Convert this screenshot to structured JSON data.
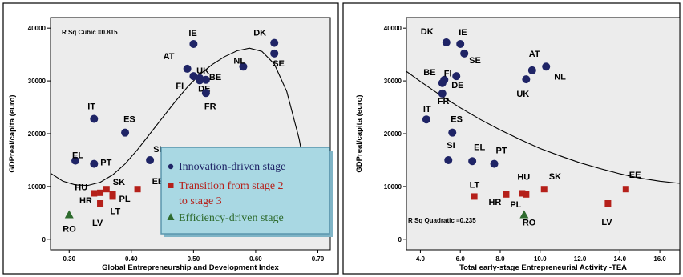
{
  "colors": {
    "innovation": "#1f2466",
    "transition": "#b5201a",
    "efficiency": "#2e6b2e",
    "legend_bg": "#a9d8e3",
    "legend_border": "#5b96ad"
  },
  "legend": {
    "items": [
      {
        "label": "Innovation-driven stage",
        "marker": "circle",
        "color": "#1f2466"
      },
      {
        "label": "Transition   from stage 2",
        "label2": "to stage 3",
        "marker": "square",
        "color": "#b5201a"
      },
      {
        "label": "Efficiency-driven stage",
        "marker": "triangle",
        "color": "#2e6b2e"
      }
    ]
  },
  "chart_data": [
    {
      "type": "scatter",
      "title": "",
      "annotation": "R Sq Cubic =0.815",
      "xlabel": "Global Entrepreneurship and Development Index",
      "ylabel": "GDPreal/capita (euro)",
      "xlim": [
        0.27,
        0.72
      ],
      "ylim": [
        -2000,
        42000
      ],
      "xticks": [
        "0.30",
        "0.40",
        "0.50",
        "0.60",
        "0.70"
      ],
      "xtick_values": [
        0.3,
        0.4,
        0.5,
        0.6,
        0.7
      ],
      "yticks": [
        "0",
        "10000",
        "20000",
        "30000",
        "40000"
      ],
      "ytick_values": [
        0,
        10000,
        20000,
        30000,
        40000
      ],
      "fit": {
        "type": "cubic",
        "x": [
          0.27,
          0.29,
          0.31,
          0.33,
          0.35,
          0.37,
          0.39,
          0.41,
          0.43,
          0.45,
          0.47,
          0.49,
          0.51,
          0.53,
          0.55,
          0.57,
          0.59,
          0.61,
          0.63,
          0.65,
          0.67,
          0.69
        ],
        "y": [
          12500,
          11000,
          10300,
          10200,
          10800,
          12200,
          14300,
          17000,
          20000,
          23000,
          26000,
          28800,
          31200,
          33100,
          34600,
          35700,
          36200,
          35600,
          33200,
          28000,
          19000,
          6000
        ]
      },
      "points": [
        {
          "label": "IE",
          "x": 0.5,
          "y": 37000,
          "group": "innovation"
        },
        {
          "label": "DK",
          "x": 0.63,
          "y": 37200,
          "group": "innovation"
        },
        {
          "label": "SE",
          "x": 0.63,
          "y": 35200,
          "group": "innovation"
        },
        {
          "label": "NL",
          "x": 0.58,
          "y": 32700,
          "group": "innovation"
        },
        {
          "label": "AT",
          "x": 0.49,
          "y": 32300,
          "group": "innovation"
        },
        {
          "label": "UK",
          "x": 0.51,
          "y": 30500,
          "group": "innovation"
        },
        {
          "label": "BE",
          "x": 0.52,
          "y": 30200,
          "group": "innovation"
        },
        {
          "label": "FI",
          "x": 0.5,
          "y": 30900,
          "group": "innovation"
        },
        {
          "label": "DE",
          "x": 0.51,
          "y": 30100,
          "group": "innovation"
        },
        {
          "label": "FR",
          "x": 0.52,
          "y": 27700,
          "group": "innovation"
        },
        {
          "label": "IT",
          "x": 0.34,
          "y": 22800,
          "group": "innovation"
        },
        {
          "label": "ES",
          "x": 0.39,
          "y": 20200,
          "group": "innovation"
        },
        {
          "label": "EL",
          "x": 0.31,
          "y": 14900,
          "group": "innovation"
        },
        {
          "label": "PT",
          "x": 0.34,
          "y": 14300,
          "group": "innovation"
        },
        {
          "label": "SI",
          "x": 0.43,
          "y": 15000,
          "group": "innovation"
        },
        {
          "label": "HU",
          "x": 0.34,
          "y": 8700,
          "group": "transition"
        },
        {
          "label": "SK",
          "x": 0.36,
          "y": 9500,
          "group": "transition"
        },
        {
          "label": "EE",
          "x": 0.41,
          "y": 9500,
          "group": "transition"
        },
        {
          "label": "HR",
          "x": 0.35,
          "y": 8800,
          "group": "transition"
        },
        {
          "label": "PL",
          "x": 0.37,
          "y": 8500,
          "group": "transition"
        },
        {
          "label": "LT",
          "x": 0.37,
          "y": 8100,
          "group": "transition"
        },
        {
          "label": "LV",
          "x": 0.35,
          "y": 6800,
          "group": "transition"
        },
        {
          "label": "RO",
          "x": 0.3,
          "y": 4600,
          "group": "efficiency"
        }
      ]
    },
    {
      "type": "scatter",
      "title": "",
      "annotation": "R Sq Quadratic =0.235",
      "xlabel": "Total early-stage Entrepreneurial Activity -TEA",
      "ylabel": "GDPreal/capita (euro)",
      "xlim": [
        3.3,
        17.0
      ],
      "ylim": [
        -2000,
        42000
      ],
      "xticks": [
        "4.0",
        "6.0",
        "8.0",
        "10.0",
        "12.0",
        "14.0",
        "16.0"
      ],
      "xtick_values": [
        4,
        6,
        8,
        10,
        12,
        14,
        16
      ],
      "yticks": [
        "0",
        "10000",
        "20000",
        "30000",
        "40000"
      ],
      "ytick_values": [
        0,
        10000,
        20000,
        30000,
        40000
      ],
      "fit": {
        "type": "quadratic",
        "x": [
          3.3,
          4.0,
          5.0,
          6.0,
          7.0,
          8.0,
          9.0,
          10.0,
          11.0,
          12.0,
          13.0,
          14.0,
          15.0,
          16.0,
          17.0
        ],
        "y": [
          31800,
          29900,
          27300,
          24900,
          22700,
          20700,
          18900,
          17200,
          15800,
          14500,
          13400,
          12400,
          11600,
          11000,
          10600
        ]
      },
      "points": [
        {
          "label": "DK",
          "x": 5.3,
          "y": 37300,
          "group": "innovation"
        },
        {
          "label": "IE",
          "x": 6.0,
          "y": 37000,
          "group": "innovation"
        },
        {
          "label": "SE",
          "x": 6.2,
          "y": 35200,
          "group": "innovation"
        },
        {
          "label": "AT",
          "x": 9.6,
          "y": 32000,
          "group": "innovation"
        },
        {
          "label": "NL",
          "x": 10.3,
          "y": 32700,
          "group": "innovation"
        },
        {
          "label": "UK",
          "x": 9.3,
          "y": 30300,
          "group": "innovation"
        },
        {
          "label": "BE",
          "x": 5.2,
          "y": 30200,
          "group": "innovation"
        },
        {
          "label": "FI",
          "x": 5.1,
          "y": 29600,
          "group": "innovation"
        },
        {
          "label": "DE",
          "x": 5.8,
          "y": 30900,
          "group": "innovation"
        },
        {
          "label": "FR",
          "x": 5.1,
          "y": 27600,
          "group": "innovation"
        },
        {
          "label": "IT",
          "x": 4.3,
          "y": 22700,
          "group": "innovation"
        },
        {
          "label": "ES",
          "x": 5.6,
          "y": 20200,
          "group": "innovation"
        },
        {
          "label": "SI",
          "x": 5.4,
          "y": 15000,
          "group": "innovation"
        },
        {
          "label": "EL",
          "x": 6.6,
          "y": 14800,
          "group": "innovation"
        },
        {
          "label": "PT",
          "x": 7.7,
          "y": 14300,
          "group": "innovation"
        },
        {
          "label": "LT",
          "x": 6.7,
          "y": 8100,
          "group": "transition"
        },
        {
          "label": "HR",
          "x": 8.3,
          "y": 8500,
          "group": "transition"
        },
        {
          "label": "HU",
          "x": 9.1,
          "y": 8700,
          "group": "transition"
        },
        {
          "label": "PL",
          "x": 9.3,
          "y": 8500,
          "group": "transition"
        },
        {
          "label": "SK",
          "x": 10.2,
          "y": 9500,
          "group": "transition"
        },
        {
          "label": "EE",
          "x": 14.3,
          "y": 9500,
          "group": "transition"
        },
        {
          "label": "LV",
          "x": 13.4,
          "y": 6800,
          "group": "transition"
        },
        {
          "label": "RO",
          "x": 9.2,
          "y": 4600,
          "group": "efficiency"
        }
      ]
    }
  ]
}
